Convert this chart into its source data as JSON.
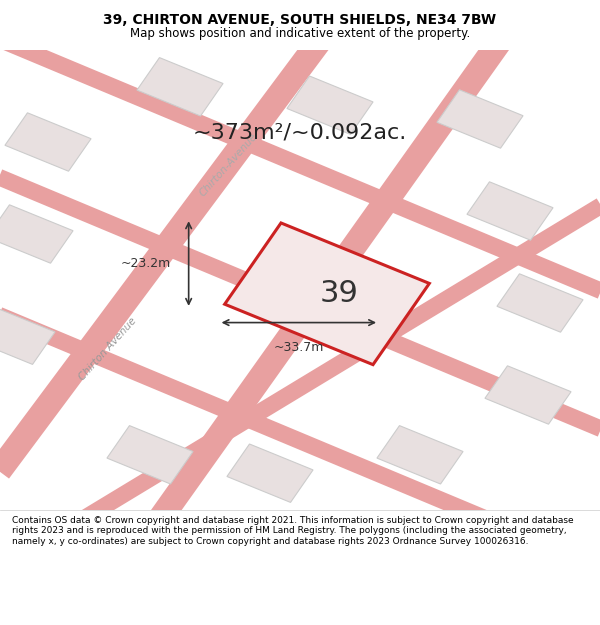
{
  "title_line1": "39, CHIRTON AVENUE, SOUTH SHIELDS, NE34 7BW",
  "title_line2": "Map shows position and indicative extent of the property.",
  "area_text": "~373m²/~0.092ac.",
  "label_number": "39",
  "dim_width": "~33.7m",
  "dim_height": "~23.2m",
  "footer_text": "Contains OS data © Crown copyright and database right 2021. This information is subject to Crown copyright and database rights 2023 and is reproduced with the permission of HM Land Registry. The polygons (including the associated geometry, namely x, y co-ordinates) are subject to Crown copyright and database rights 2023 Ordnance Survey 100026316.",
  "bg_color": "#f5f0f0",
  "map_bg": "#f5f0f0",
  "plot_fill": "#f5e8e8",
  "plot_edge": "#cc2222",
  "road_color": "#e8a0a0",
  "building_fill": "#e8e0e0",
  "building_edge": "#cccccc",
  "footer_bg": "#ffffff",
  "title_bg": "#ffffff",
  "street_label": "Chirton Avenue",
  "street_label2": "Chirton-Avenue"
}
